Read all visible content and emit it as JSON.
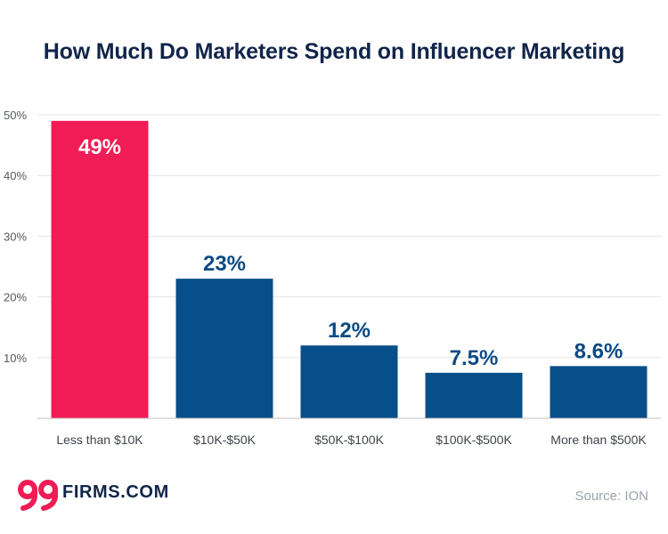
{
  "chart_data": {
    "type": "bar",
    "title": "How Much Do Marketers Spend on Influencer Marketing",
    "categories": [
      "Less than $10K",
      "$10K-$50K",
      "$50K-$100K",
      "$100K-$500K",
      "More than $500K"
    ],
    "values": [
      49,
      23,
      12,
      7.5,
      8.6
    ],
    "value_labels": [
      "49%",
      "23%",
      "12%",
      "7.5%",
      "8.6%"
    ],
    "y_ticks": [
      10,
      20,
      30,
      40,
      50
    ],
    "y_tick_labels": [
      "10%",
      "20%",
      "30%",
      "40%",
      "50%"
    ],
    "ylim": [
      0,
      50
    ],
    "xlabel": "",
    "ylabel": "",
    "grid": true,
    "colors": {
      "highlight": "#f01c56",
      "bar": "#074f8a",
      "label_on_highlight": "#ffffff",
      "label_dark": "#0c4b84",
      "grid": "#e3e3e3",
      "axis": "#bfbfbf"
    },
    "highlight_index": 0
  },
  "footer": {
    "logo_mark": "99",
    "logo_text": "FIRMS.COM",
    "source": "Source: ION"
  }
}
